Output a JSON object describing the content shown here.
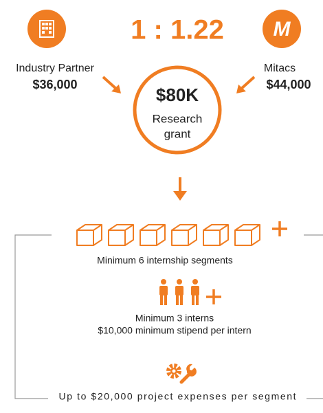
{
  "ratio": "1 : 1.22",
  "partner": {
    "label": "Industry Partner",
    "amount": "$36,000"
  },
  "mitacs": {
    "logo": "M",
    "label": "Mitacs",
    "amount": "$44,000"
  },
  "grant": {
    "amount": "$80K",
    "line1": "Research",
    "line2": "grant"
  },
  "segments": {
    "text": "Minimum 6 internship segments"
  },
  "interns": {
    "line1": "Minimum 3 interns",
    "line2": "$10,000 minimum stipend per intern"
  },
  "expenses": {
    "text": "Up to $20,000 project expenses per segment"
  }
}
